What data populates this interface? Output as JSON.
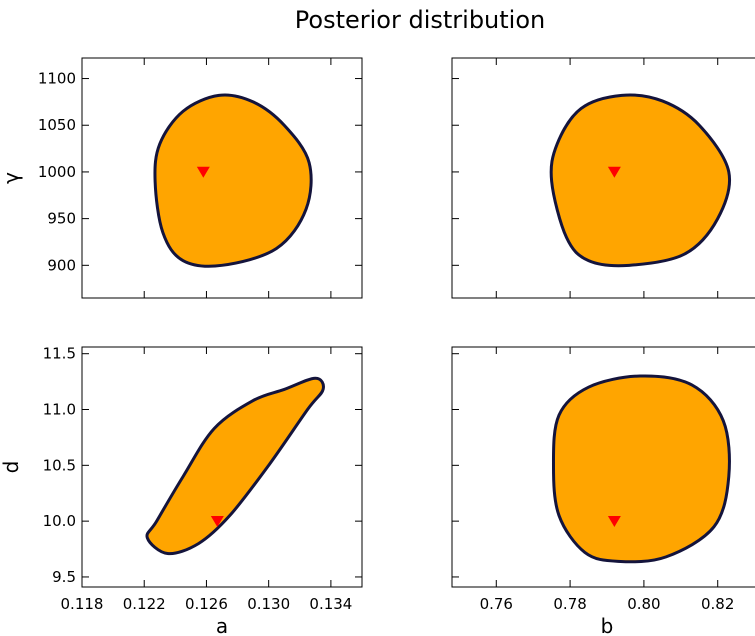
{
  "title": "Posterior distribution",
  "colors": {
    "region_fill": "#ffa500",
    "region_edge": "#14143c",
    "truth_marker": "#ff0000"
  },
  "chart_data": [
    {
      "type": "contour",
      "panel": "top-left",
      "xlabel": "",
      "ylabel": "γ",
      "xlim": [
        0.118,
        0.136
      ],
      "ylim": [
        865,
        1122
      ],
      "xticks": [
        0.118,
        0.122,
        0.126,
        0.13,
        0.134
      ],
      "xtick_labels": [
        "",
        "",
        "",
        "",
        ""
      ],
      "yticks": [
        900,
        950,
        1000,
        1050,
        1100
      ],
      "ytick_labels": [
        "900",
        "950",
        "1000",
        "1050",
        "1100"
      ],
      "truth": {
        "x": 0.1258,
        "y": 1000
      },
      "contour": [
        [
          0.1227,
          990
        ],
        [
          0.123,
          1030
        ],
        [
          0.1245,
          1065
        ],
        [
          0.1268,
          1082
        ],
        [
          0.129,
          1075
        ],
        [
          0.131,
          1050
        ],
        [
          0.1326,
          1010
        ],
        [
          0.1324,
          960
        ],
        [
          0.1305,
          918
        ],
        [
          0.127,
          900
        ],
        [
          0.1245,
          905
        ],
        [
          0.1232,
          935
        ]
      ]
    },
    {
      "type": "contour",
      "panel": "top-right",
      "xlabel": "",
      "ylabel": "",
      "xlim": [
        0.748,
        0.832
      ],
      "ylim": [
        865,
        1122
      ],
      "xticks": [
        0.76,
        0.78,
        0.8,
        0.82
      ],
      "xtick_labels": [
        "",
        "",
        "",
        ""
      ],
      "yticks": [
        900,
        950,
        1000,
        1050,
        1100
      ],
      "ytick_labels": [
        "",
        "",
        "",
        "",
        ""
      ],
      "truth": {
        "x": 0.792,
        "y": 1000
      },
      "contour": [
        [
          0.775,
          990
        ],
        [
          0.7765,
          1030
        ],
        [
          0.783,
          1068
        ],
        [
          0.794,
          1082
        ],
        [
          0.805,
          1076
        ],
        [
          0.815,
          1050
        ],
        [
          0.823,
          1000
        ],
        [
          0.82,
          950
        ],
        [
          0.811,
          912
        ],
        [
          0.796,
          900
        ],
        [
          0.785,
          905
        ],
        [
          0.779,
          930
        ]
      ]
    },
    {
      "type": "contour",
      "panel": "bottom-left",
      "xlabel": "a",
      "ylabel": "d",
      "xlim": [
        0.118,
        0.136
      ],
      "ylim": [
        9.41,
        11.56
      ],
      "xticks": [
        0.118,
        0.122,
        0.126,
        0.13,
        0.134
      ],
      "xtick_labels": [
        "0.118",
        "0.122",
        "0.126",
        "0.130",
        "0.134"
      ],
      "yticks": [
        9.5,
        10.0,
        10.5,
        11.0,
        11.5
      ],
      "ytick_labels": [
        "9.5",
        "10.0",
        "10.5",
        "11.0",
        "11.5"
      ],
      "truth": {
        "x": 0.1267,
        "y": 10.0
      },
      "contour": [
        [
          0.1222,
          9.85
        ],
        [
          0.1235,
          9.71
        ],
        [
          0.1255,
          9.8
        ],
        [
          0.1275,
          10.05
        ],
        [
          0.13,
          10.5
        ],
        [
          0.1325,
          11.0
        ],
        [
          0.1335,
          11.18
        ],
        [
          0.133,
          11.28
        ],
        [
          0.131,
          11.18
        ],
        [
          0.129,
          11.08
        ],
        [
          0.1265,
          10.83
        ],
        [
          0.1245,
          10.4
        ],
        [
          0.1228,
          10.0
        ]
      ]
    },
    {
      "type": "contour",
      "panel": "bottom-right",
      "xlabel": "b",
      "ylabel": "",
      "xlim": [
        0.748,
        0.832
      ],
      "ylim": [
        9.41,
        11.56
      ],
      "xticks": [
        0.76,
        0.78,
        0.8,
        0.82
      ],
      "xtick_labels": [
        "0.76",
        "0.78",
        "0.80",
        "0.82"
      ],
      "yticks": [
        9.5,
        10.0,
        10.5,
        11.0,
        11.5
      ],
      "ytick_labels": [
        "",
        "",
        "",
        "",
        ""
      ],
      "truth": {
        "x": 0.792,
        "y": 10.0
      },
      "contour": [
        [
          0.7755,
          10.5
        ],
        [
          0.777,
          10.95
        ],
        [
          0.785,
          11.2
        ],
        [
          0.799,
          11.3
        ],
        [
          0.813,
          11.22
        ],
        [
          0.8215,
          10.9
        ],
        [
          0.823,
          10.4
        ],
        [
          0.819,
          9.95
        ],
        [
          0.806,
          9.68
        ],
        [
          0.793,
          9.64
        ],
        [
          0.784,
          9.72
        ],
        [
          0.777,
          10.05
        ]
      ]
    }
  ]
}
